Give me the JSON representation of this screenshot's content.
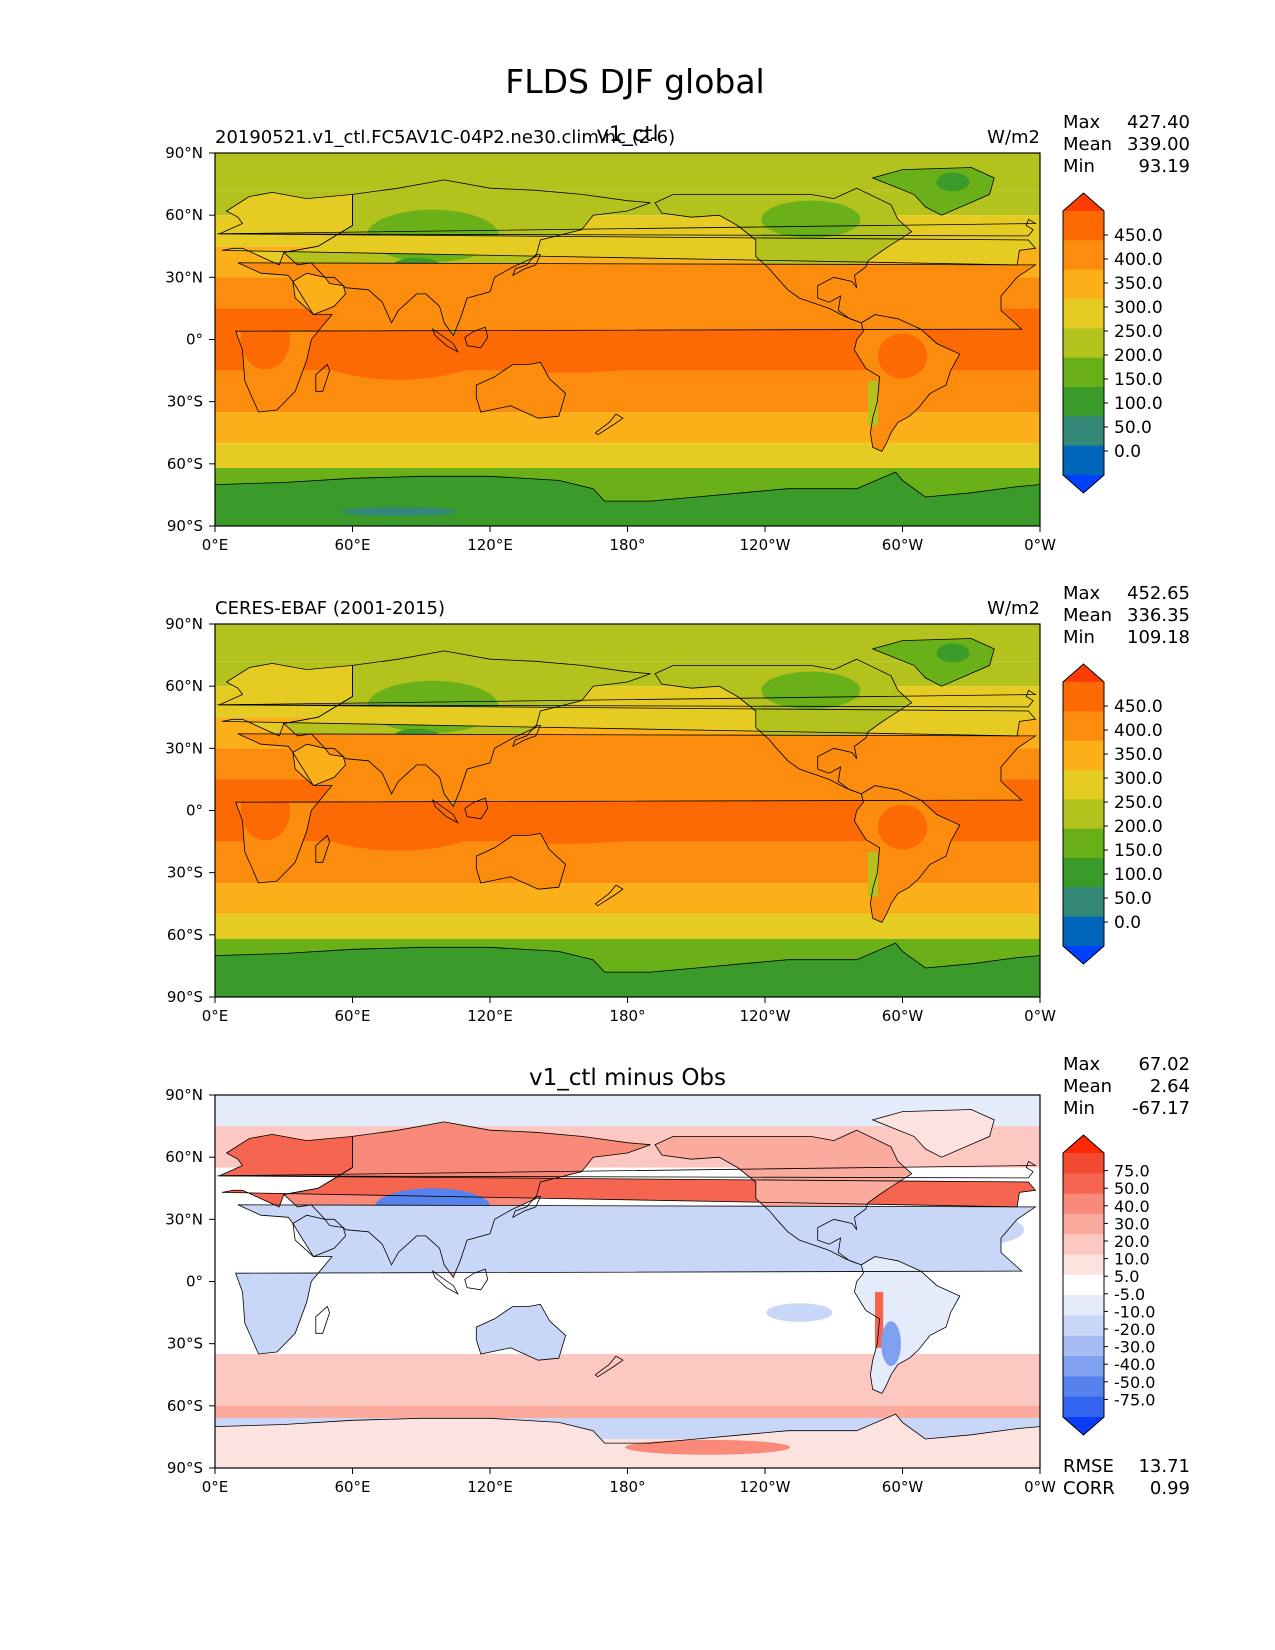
{
  "figure_title": "FLDS DJF global",
  "lat_ticks": [
    "90°N",
    "60°N",
    "30°N",
    "0°",
    "30°S",
    "60°S",
    "90°S"
  ],
  "lon_ticks": [
    "0°E",
    "60°E",
    "120°E",
    "180°",
    "120°W",
    "60°W",
    "0°W"
  ],
  "panels": [
    {
      "left_title": "20190521.v1_ctl.FC5AV1C-04P2.ne30.clim.nc (2-6)",
      "center_title": "v1_ctl",
      "units": "W/m2",
      "stats": [
        [
          "Max",
          "427.40"
        ],
        [
          "Mean",
          "339.00"
        ],
        [
          "Min",
          "93.19"
        ]
      ],
      "colorbar_labels": [
        "450.0",
        "400.0",
        "350.0",
        "300.0",
        "250.0",
        "200.0",
        "150.0",
        "100.0",
        "50.0",
        "0.0"
      ]
    },
    {
      "left_title": "CERES-EBAF (2001-2015)",
      "center_title": "",
      "units": "W/m2",
      "stats": [
        [
          "Max",
          "452.65"
        ],
        [
          "Mean",
          "336.35"
        ],
        [
          "Min",
          "109.18"
        ]
      ],
      "colorbar_labels": [
        "450.0",
        "400.0",
        "350.0",
        "300.0",
        "250.0",
        "200.0",
        "150.0",
        "100.0",
        "50.0",
        "0.0"
      ]
    },
    {
      "left_title": "",
      "center_title": "v1_ctl minus Obs",
      "units": "",
      "stats": [
        [
          "Max",
          "67.02"
        ],
        [
          "Mean",
          "2.64"
        ],
        [
          "Min",
          "-67.17"
        ]
      ],
      "colorbar_labels": [
        "75.0",
        "50.0",
        "40.0",
        "30.0",
        "20.0",
        "10.0",
        "5.0",
        "-5.0",
        "-10.0",
        "-20.0",
        "-30.0",
        "-40.0",
        "-50.0",
        "-75.0"
      ],
      "extra_stats": [
        [
          "RMSE",
          "13.71"
        ],
        [
          "CORR",
          "0.99"
        ]
      ]
    }
  ],
  "chart_data": {
    "type": "heatmap",
    "title": "FLDS DJF global",
    "x_range": [
      0,
      360
    ],
    "y_range": [
      -90,
      90
    ],
    "colormaps": {
      "field": [
        "#0040ff",
        "#0066bb",
        "#338877",
        "#3a9a2a",
        "#6ab018",
        "#b4c21e",
        "#e6cc22",
        "#fbb01a",
        "#fb8c0e",
        "#fd6a04",
        "#ff3c00"
      ],
      "diff": [
        "#0a3cf5",
        "#3264f0",
        "#5582ec",
        "#7ea0ee",
        "#a6bcf2",
        "#c8d6f7",
        "#e4ebfb",
        "#ffffff",
        "#fde3e0",
        "#fcc8c1",
        "#fbaa9e",
        "#f98a7a",
        "#f6654f",
        "#f24a30",
        "#ff2800"
      ]
    }
  }
}
